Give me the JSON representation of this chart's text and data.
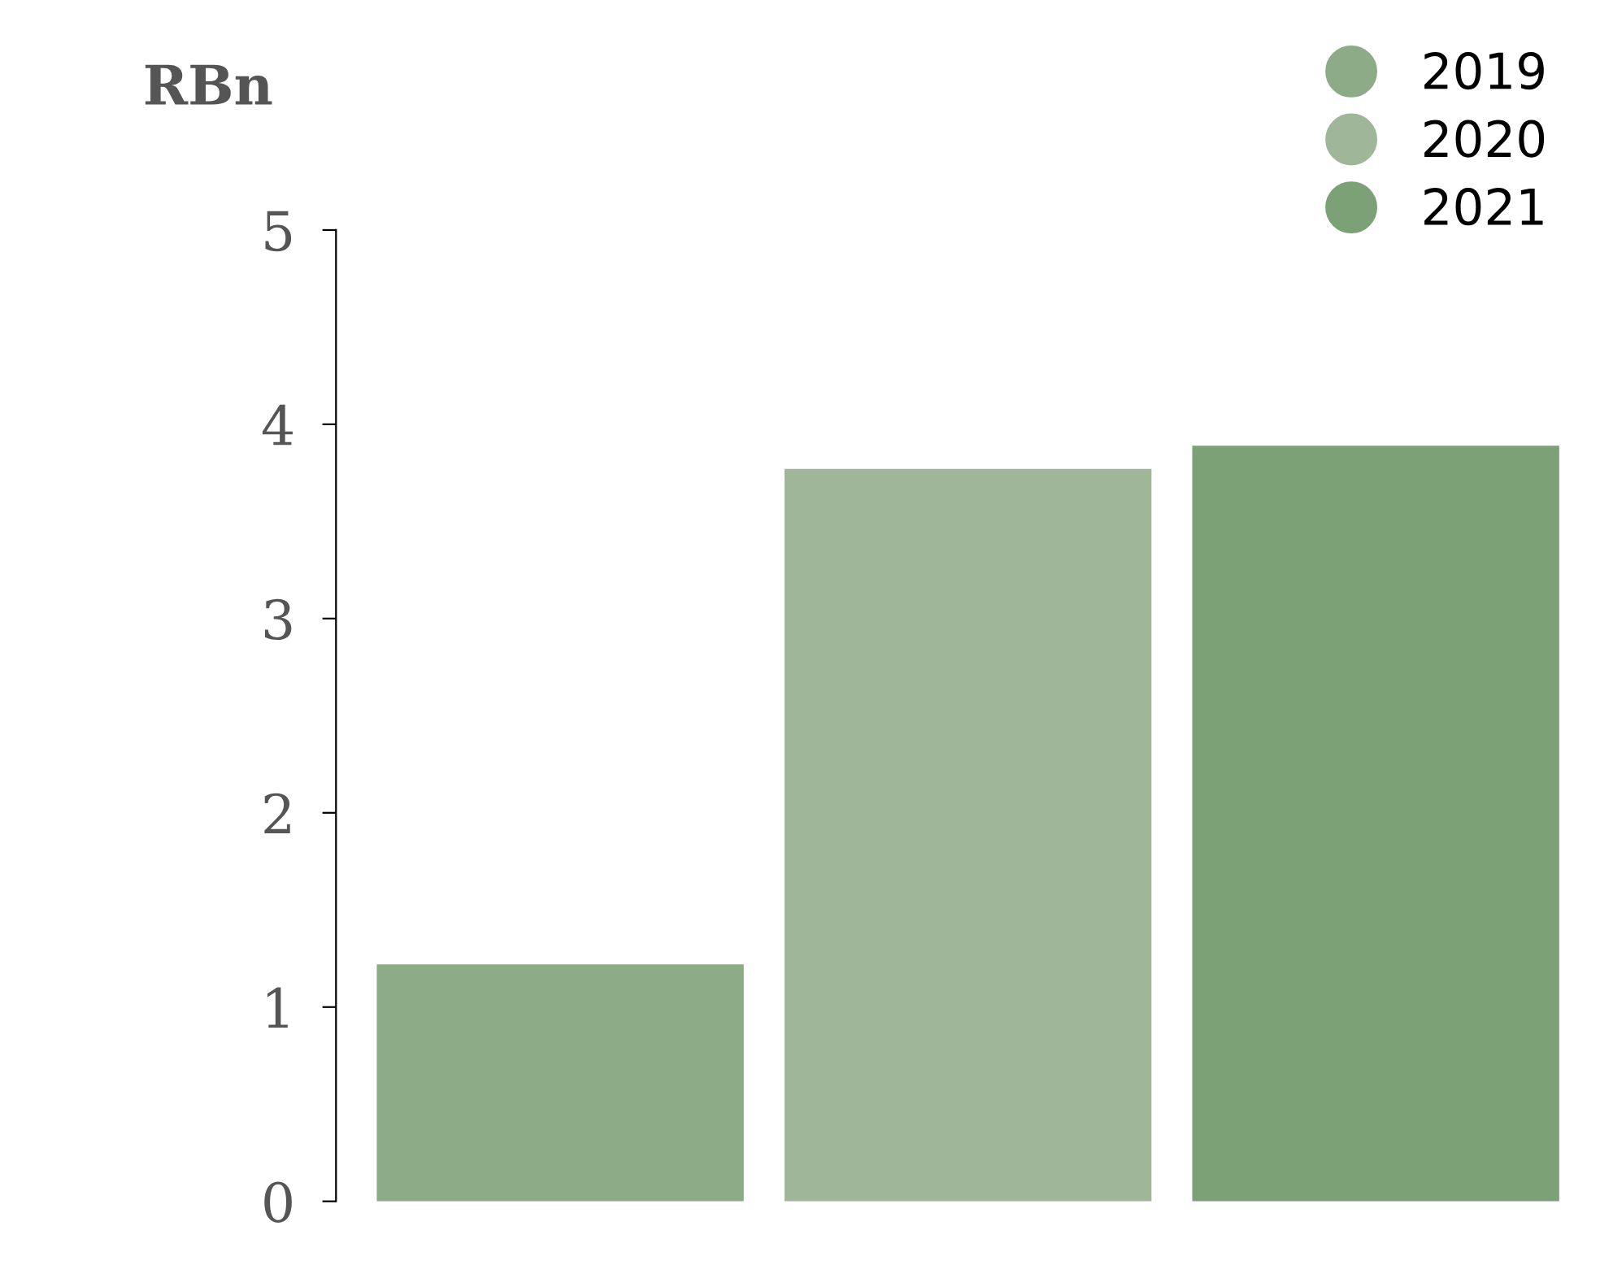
{
  "chart_data": {
    "type": "bar",
    "ylabel": "RBn",
    "stacked": true,
    "categories": [
      null,
      null,
      null
    ],
    "series": [
      {
        "name": "2019",
        "color": "#8dab87",
        "values": [
          1.22,
          null,
          null
        ]
      },
      {
        "name": "2020",
        "color": "#a0b699",
        "values": [
          null,
          3.77,
          null
        ]
      },
      {
        "name": "2021",
        "color": "#7ca177",
        "values": [
          null,
          null,
          3.89
        ]
      }
    ],
    "ylim": [
      0,
      5
    ],
    "yticks": [
      0,
      1,
      2,
      3,
      4,
      5
    ],
    "grid": false,
    "legend": "top right"
  }
}
